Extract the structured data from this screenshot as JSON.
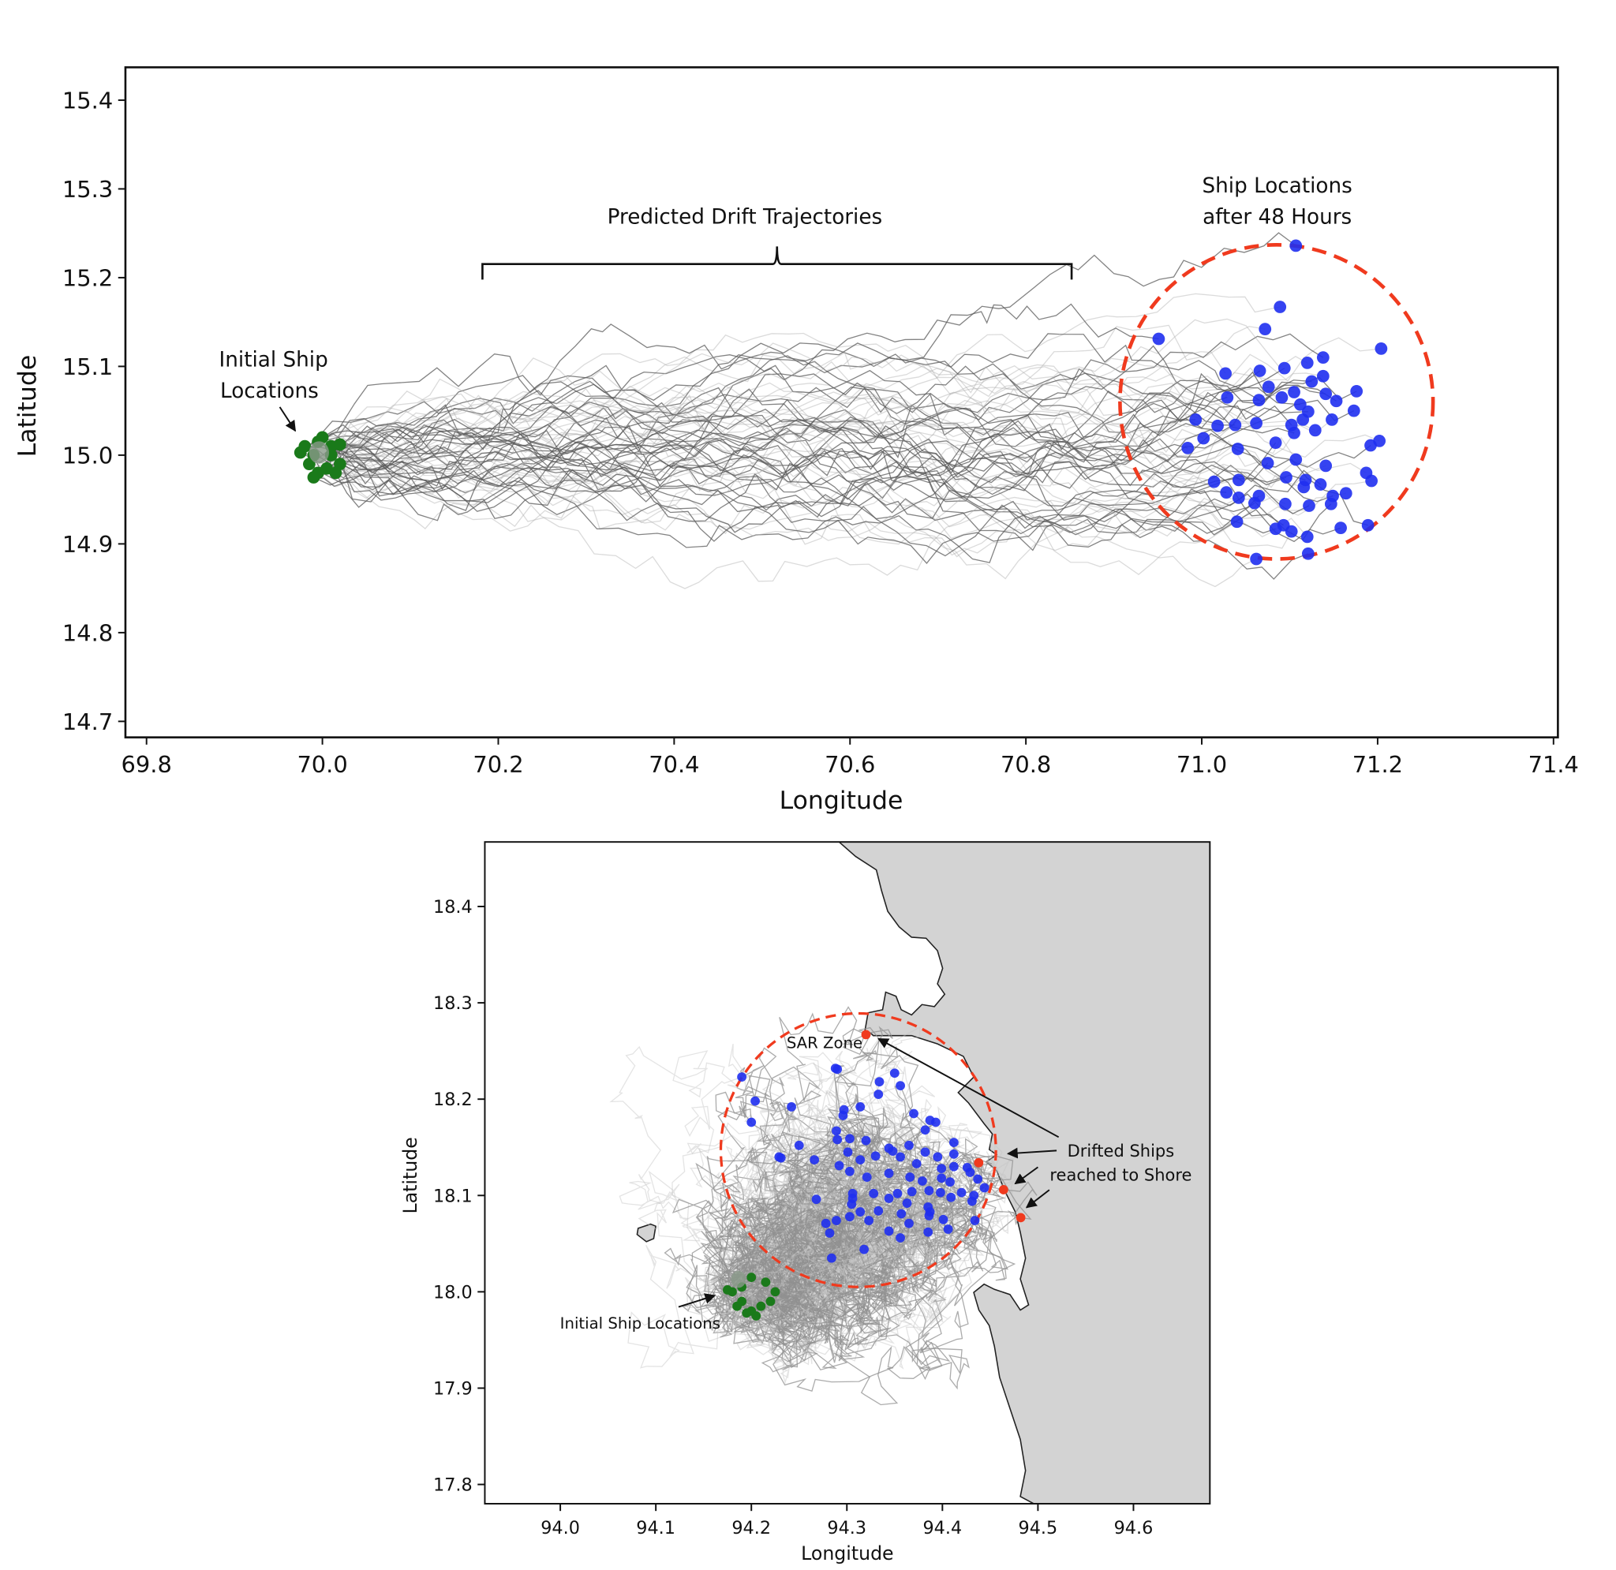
{
  "chart_data": [
    {
      "type": "scatter",
      "xlabel": "Longitude",
      "ylabel": "Latitude",
      "xlim": [
        69.776,
        71.405
      ],
      "ylim": [
        14.682,
        15.437
      ],
      "xticks": [
        "69.8",
        "70.0",
        "70.2",
        "70.4",
        "70.6",
        "70.8",
        "71.0",
        "71.2",
        "71.4"
      ],
      "yticks": [
        "14.7",
        "14.8",
        "14.9",
        "15.0",
        "15.1",
        "15.2",
        "15.3",
        "15.4"
      ],
      "grid": false,
      "colors": {
        "trajectory": "#808080",
        "initial": "#1a7a1a",
        "final": "#1f2ff0",
        "circle": "#f03a1e"
      },
      "annotations": {
        "trajectories": "Predicted Drift Trajectories",
        "trajectories_span_lon": [
          70.182,
          70.852
        ],
        "final_line1": "Ship Locations",
        "final_line2": "after 48 Hours",
        "initial_line1": "Initial Ship",
        "initial_line2": "Locations"
      },
      "zone_circle": {
        "center": [
          71.085,
          15.06
        ],
        "radius_lon": 0.178,
        "radius_lat": 0.177,
        "style": "dashed"
      },
      "initial_locations": [
        [
          69.975,
          15.003
        ],
        [
          69.985,
          14.99
        ],
        [
          69.99,
          14.975
        ],
        [
          69.995,
          15.015
        ],
        [
          70.0,
          15.02
        ],
        [
          70.01,
          15.01
        ],
        [
          70.02,
          14.99
        ],
        [
          70.015,
          14.98
        ],
        [
          69.98,
          15.01
        ],
        [
          70.005,
          14.985
        ],
        [
          69.99,
          15.0
        ],
        [
          70.01,
          15.0
        ],
        [
          69.995,
          14.98
        ],
        [
          70.02,
          15.012
        ]
      ],
      "final_locations": [
        [
          71.107,
          15.236
        ],
        [
          71.089,
          15.167
        ],
        [
          71.072,
          15.142
        ],
        [
          70.951,
          15.131
        ],
        [
          71.204,
          15.12
        ],
        [
          71.138,
          15.11
        ],
        [
          71.12,
          15.104
        ],
        [
          71.094,
          15.098
        ],
        [
          71.066,
          15.095
        ],
        [
          71.027,
          15.092
        ],
        [
          71.138,
          15.089
        ],
        [
          71.125,
          15.083
        ],
        [
          71.076,
          15.077
        ],
        [
          71.176,
          15.072
        ],
        [
          71.105,
          15.071
        ],
        [
          71.029,
          15.065
        ],
        [
          71.065,
          15.062
        ],
        [
          71.141,
          15.069
        ],
        [
          71.153,
          15.061
        ],
        [
          71.112,
          15.057
        ],
        [
          71.091,
          15.065
        ],
        [
          71.173,
          15.05
        ],
        [
          71.121,
          15.049
        ],
        [
          71.148,
          15.04
        ],
        [
          71.115,
          15.04
        ],
        [
          71.102,
          15.034
        ],
        [
          71.129,
          15.028
        ],
        [
          71.105,
          15.025
        ],
        [
          70.993,
          15.04
        ],
        [
          71.018,
          15.033
        ],
        [
          71.038,
          15.034
        ],
        [
          71.062,
          15.036
        ],
        [
          71.002,
          15.019
        ],
        [
          71.084,
          15.014
        ],
        [
          70.984,
          15.008
        ],
        [
          71.202,
          15.016
        ],
        [
          71.192,
          15.011
        ],
        [
          71.041,
          15.007
        ],
        [
          71.107,
          14.995
        ],
        [
          71.075,
          14.991
        ],
        [
          71.141,
          14.988
        ],
        [
          71.187,
          14.98
        ],
        [
          71.096,
          14.975
        ],
        [
          71.193,
          14.971
        ],
        [
          71.042,
          14.972
        ],
        [
          71.014,
          14.97
        ],
        [
          71.118,
          14.972
        ],
        [
          71.135,
          14.967
        ],
        [
          71.116,
          14.964
        ],
        [
          71.164,
          14.957
        ],
        [
          71.149,
          14.954
        ],
        [
          71.065,
          14.954
        ],
        [
          71.095,
          14.945
        ],
        [
          71.122,
          14.943
        ],
        [
          71.147,
          14.945
        ],
        [
          71.04,
          14.925
        ],
        [
          71.084,
          14.917
        ],
        [
          71.102,
          14.914
        ],
        [
          71.158,
          14.918
        ],
        [
          71.189,
          14.921
        ],
        [
          71.12,
          14.908
        ],
        [
          71.062,
          14.883
        ],
        [
          71.121,
          14.889
        ],
        [
          71.028,
          14.958
        ],
        [
          71.06,
          14.946
        ],
        [
          71.093,
          14.921
        ],
        [
          71.042,
          14.952
        ]
      ]
    },
    {
      "type": "scatter",
      "xlabel": "Longitude",
      "ylabel": "Latitude",
      "xlim": [
        93.921,
        94.68
      ],
      "ylim": [
        17.78,
        18.467
      ],
      "xticks": [
        "94.0",
        "94.1",
        "94.2",
        "94.3",
        "94.4",
        "94.5",
        "94.6"
      ],
      "yticks": [
        "17.8",
        "17.9",
        "18.0",
        "18.1",
        "18.2",
        "18.3",
        "18.4"
      ],
      "grid": false,
      "colors": {
        "trajectory": "#a0a0a0",
        "initial": "#1a7a1a",
        "final": "#1f2ff0",
        "shore": "#f03a1e",
        "circle": "#f03a1e",
        "land": "#d3d3d3"
      },
      "annotations": {
        "zone": "SAR Zone",
        "shore_line1": "Drifted Ships",
        "shore_line2": "reached to Shore",
        "initial": "Initial Ship Locations"
      },
      "zone_circle": {
        "center": [
          94.312,
          18.147
        ],
        "radius_lon": 0.144,
        "radius_lat": 0.142,
        "style": "dashed"
      },
      "initial_locations": [
        [
          94.18,
          18.0
        ],
        [
          94.19,
          17.99
        ],
        [
          94.2,
          17.98
        ],
        [
          94.21,
          17.985
        ],
        [
          94.22,
          17.99
        ],
        [
          94.225,
          18.0
        ],
        [
          94.215,
          18.01
        ],
        [
          94.2,
          18.015
        ],
        [
          94.19,
          18.005
        ],
        [
          94.185,
          17.985
        ],
        [
          94.205,
          17.975
        ],
        [
          94.195,
          17.978
        ],
        [
          94.175,
          18.002
        ]
      ],
      "final_locations": [
        [
          94.19,
          18.223
        ],
        [
          94.204,
          18.198
        ],
        [
          94.2,
          18.176
        ],
        [
          94.242,
          18.192
        ],
        [
          94.288,
          18.232
        ],
        [
          94.29,
          18.231
        ],
        [
          94.334,
          18.218
        ],
        [
          94.35,
          18.227
        ],
        [
          94.356,
          18.214
        ],
        [
          94.333,
          18.205
        ],
        [
          94.314,
          18.192
        ],
        [
          94.297,
          18.189
        ],
        [
          94.296,
          18.183
        ],
        [
          94.37,
          18.185
        ],
        [
          94.387,
          18.178
        ],
        [
          94.393,
          18.176
        ],
        [
          94.382,
          18.168
        ],
        [
          94.289,
          18.167
        ],
        [
          94.29,
          18.158
        ],
        [
          94.303,
          18.159
        ],
        [
          94.32,
          18.157
        ],
        [
          94.344,
          18.149
        ],
        [
          94.365,
          18.152
        ],
        [
          94.382,
          18.145
        ],
        [
          94.395,
          18.14
        ],
        [
          94.412,
          18.155
        ],
        [
          94.412,
          18.143
        ],
        [
          94.25,
          18.152
        ],
        [
          94.229,
          18.14
        ],
        [
          94.301,
          18.145
        ],
        [
          94.314,
          18.137
        ],
        [
          94.33,
          18.141
        ],
        [
          94.348,
          18.146
        ],
        [
          94.356,
          18.14
        ],
        [
          94.373,
          18.133
        ],
        [
          94.399,
          18.128
        ],
        [
          94.412,
          18.13
        ],
        [
          94.426,
          18.129
        ],
        [
          94.429,
          18.124
        ],
        [
          94.437,
          18.117
        ],
        [
          94.444,
          18.108
        ],
        [
          94.399,
          18.118
        ],
        [
          94.408,
          18.114
        ],
        [
          94.379,
          18.115
        ],
        [
          94.366,
          18.119
        ],
        [
          94.344,
          18.123
        ],
        [
          94.321,
          18.119
        ],
        [
          94.292,
          18.131
        ],
        [
          94.303,
          18.125
        ],
        [
          94.353,
          18.102
        ],
        [
          94.368,
          18.104
        ],
        [
          94.386,
          18.105
        ],
        [
          94.398,
          18.103
        ],
        [
          94.409,
          18.098
        ],
        [
          94.42,
          18.103
        ],
        [
          94.433,
          18.1
        ],
        [
          94.431,
          18.094
        ],
        [
          94.385,
          18.088
        ],
        [
          94.363,
          18.092
        ],
        [
          94.344,
          18.097
        ],
        [
          94.328,
          18.102
        ],
        [
          94.306,
          18.097
        ],
        [
          94.305,
          18.091
        ],
        [
          94.333,
          18.084
        ],
        [
          94.357,
          18.081
        ],
        [
          94.387,
          18.083
        ],
        [
          94.401,
          18.075
        ],
        [
          94.434,
          18.074
        ],
        [
          94.386,
          18.079
        ],
        [
          94.365,
          18.071
        ],
        [
          94.344,
          18.063
        ],
        [
          94.356,
          18.056
        ],
        [
          94.289,
          18.074
        ],
        [
          94.278,
          18.071
        ],
        [
          94.282,
          18.061
        ],
        [
          94.303,
          18.078
        ],
        [
          94.314,
          18.083
        ],
        [
          94.385,
          18.062
        ],
        [
          94.406,
          18.065
        ],
        [
          94.318,
          18.044
        ],
        [
          94.284,
          18.035
        ],
        [
          94.231,
          18.139
        ],
        [
          94.266,
          18.137
        ],
        [
          94.323,
          18.074
        ],
        [
          94.268,
          18.096
        ],
        [
          94.306,
          18.102
        ]
      ],
      "shore_locations": [
        [
          94.32,
          18.267
        ],
        [
          94.438,
          18.134
        ],
        [
          94.464,
          18.106
        ],
        [
          94.482,
          18.077
        ]
      ]
    }
  ]
}
